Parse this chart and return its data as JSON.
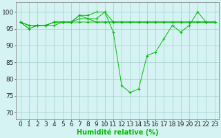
{
  "series": [
    [
      97,
      95,
      96,
      96,
      97,
      97,
      97,
      99,
      99,
      100,
      100,
      94,
      78,
      76,
      77,
      87,
      88,
      92,
      96,
      94,
      96,
      100,
      97,
      97
    ],
    [
      97,
      96,
      96,
      96,
      97,
      97,
      97,
      98,
      98,
      97,
      97,
      97,
      97,
      97,
      97,
      97,
      97,
      97,
      97,
      97,
      97,
      97,
      97,
      97
    ],
    [
      97,
      96,
      96,
      96,
      96,
      97,
      97,
      99,
      98,
      98,
      100,
      97,
      97,
      97,
      97,
      97,
      97,
      97,
      97,
      97,
      97,
      97,
      97,
      97
    ],
    [
      97,
      95,
      96,
      96,
      97,
      97,
      97,
      97,
      97,
      97,
      97,
      97,
      97,
      97,
      97,
      97,
      97,
      97,
      97,
      97,
      97,
      97,
      97,
      97
    ]
  ],
  "x": [
    0,
    1,
    2,
    3,
    4,
    5,
    6,
    7,
    8,
    9,
    10,
    11,
    12,
    13,
    14,
    15,
    16,
    17,
    18,
    19,
    20,
    21,
    22,
    23
  ],
  "line_color": "#00bb00",
  "bg_color": "#d6f3f3",
  "grid_color": "#a0cccc",
  "xlabel": "Humidité relative (%)",
  "ylabel_ticks": [
    70,
    75,
    80,
    85,
    90,
    95,
    100
  ],
  "xlim": [
    -0.5,
    23.5
  ],
  "ylim": [
    68,
    103
  ],
  "xlabel_fontsize": 7,
  "tick_fontsize": 6.5
}
